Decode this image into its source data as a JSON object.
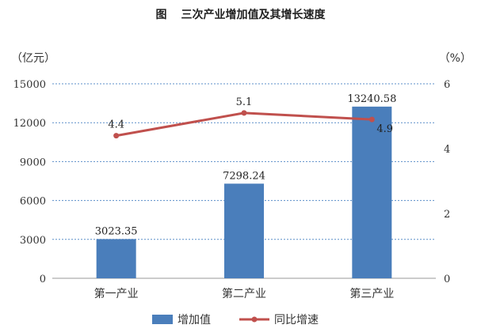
{
  "figure": {
    "prefix": "图",
    "caption": "三次产业增加值及其增长速度"
  },
  "colors": {
    "bar": "#4a7ebb",
    "line": "#c0504d",
    "grid": "#5b8fc9",
    "axis": "#999999"
  },
  "chart_data": {
    "type": "bar",
    "title": "三次产业增加值及其增长速度",
    "categories": [
      "第一产业",
      "第二产业",
      "第三产业"
    ],
    "series": [
      {
        "name": "增加值",
        "type": "bar",
        "axis": "left",
        "values": [
          3023.35,
          7298.24,
          13240.58
        ],
        "labels": [
          "3023.35",
          "7298.24",
          "13240.58"
        ]
      },
      {
        "name": "同比增速",
        "type": "line",
        "axis": "right",
        "values": [
          4.4,
          5.1,
          4.9
        ],
        "labels": [
          "4.4",
          "5.1",
          "4.9"
        ]
      }
    ],
    "y_left": {
      "label": "（亿元）",
      "range": [
        0,
        15000
      ],
      "ticks": [
        "0",
        "3000",
        "6000",
        "9000",
        "12000",
        "15000"
      ]
    },
    "y_right": {
      "label": "（%）",
      "range": [
        0,
        6
      ],
      "ticks": [
        "0",
        "2",
        "4",
        "6"
      ]
    },
    "legend": {
      "position": "bottom"
    },
    "grid": true
  }
}
